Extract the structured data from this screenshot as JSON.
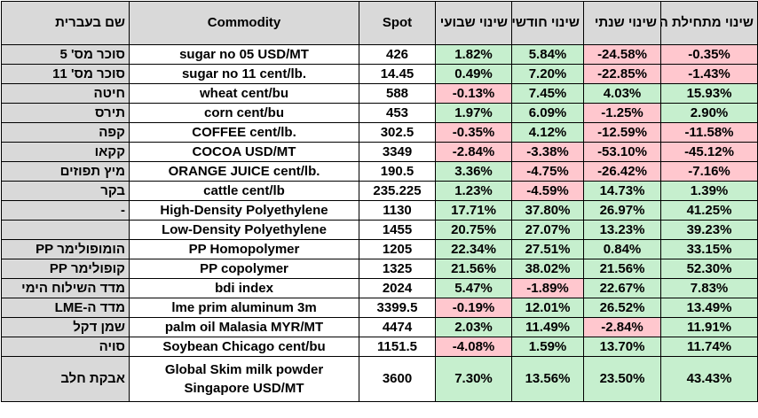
{
  "headers": {
    "hebrew_name": "שם בעברית",
    "commodity": "Commodity",
    "spot": "Spot",
    "weekly_change": "שינוי שבועי",
    "monthly_change": "שינוי חודשי",
    "yearly_change": "שינוי שנתי",
    "ytd_change": "שינוי מתחילת השנה"
  },
  "colors": {
    "positive_fill": "#c6efce",
    "negative_fill": "#ffc7ce",
    "negative_text": "#9c0006",
    "hebrew_column_fill": "#d9d9d9"
  },
  "rows": [
    {
      "hebrew": "סוכר מס' 5",
      "commodity": "sugar no 05 USD/MT",
      "spot": "426",
      "weekly": "1.82%",
      "monthly": "5.84%",
      "yearly": "-24.58%",
      "ytd": "-0.35%"
    },
    {
      "hebrew": "סוכר מס' 11",
      "commodity": "sugar no 11 cent/lb.",
      "spot": "14.45",
      "weekly": "0.49%",
      "monthly": "7.20%",
      "yearly": "-22.85%",
      "ytd": "-1.43%"
    },
    {
      "hebrew": "חיטה",
      "commodity": "wheat cent/bu",
      "spot": "588",
      "weekly": "-0.13%",
      "monthly": "7.45%",
      "yearly": "4.03%",
      "ytd": "15.93%"
    },
    {
      "hebrew": "תירס",
      "commodity": "corn cent/bu",
      "spot": "453",
      "weekly": "1.97%",
      "monthly": "6.09%",
      "yearly": "-1.25%",
      "ytd": "2.90%"
    },
    {
      "hebrew": "קפה",
      "commodity": "COFFEE cent/lb.",
      "spot": "302.5",
      "weekly": "-0.35%",
      "monthly": "4.12%",
      "yearly": "-12.59%",
      "ytd": "-11.58%"
    },
    {
      "hebrew": "קקאו",
      "commodity": "COCOA USD/MT",
      "spot": "3349",
      "weekly": "-2.84%",
      "monthly": "-3.38%",
      "yearly": "-53.10%",
      "ytd": "-45.12%"
    },
    {
      "hebrew": "מיץ תפוזים",
      "commodity": "ORANGE JUICE cent/lb.",
      "spot": "190.5",
      "weekly": "3.36%",
      "monthly": "-4.75%",
      "yearly": "-26.42%",
      "ytd": "-7.16%"
    },
    {
      "hebrew": "בקר",
      "commodity": "cattle cent/lb",
      "spot": "235.225",
      "weekly": "1.23%",
      "monthly": "-4.59%",
      "yearly": "14.73%",
      "ytd": "1.39%"
    },
    {
      "hebrew": "-",
      "commodity": "High-Density Polyethylene",
      "spot": "1130",
      "weekly": "17.71%",
      "monthly": "37.80%",
      "yearly": "26.97%",
      "ytd": "41.25%"
    },
    {
      "hebrew": "",
      "commodity": "Low-Density Polyethylene",
      "spot": "1455",
      "weekly": "20.75%",
      "monthly": "27.07%",
      "yearly": "13.23%",
      "ytd": "39.23%"
    },
    {
      "hebrew": "הומופולימר PP",
      "commodity": "PP Homopolymer",
      "spot": "1205",
      "weekly": "22.34%",
      "monthly": "27.51%",
      "yearly": "0.84%",
      "ytd": "33.15%"
    },
    {
      "hebrew": "קופולימר PP",
      "commodity": "PP copolymer",
      "spot": "1325",
      "weekly": "21.56%",
      "monthly": "38.02%",
      "yearly": "21.56%",
      "ytd": "52.30%"
    },
    {
      "hebrew": "מדד השילוח הימי",
      "commodity": "bdi index",
      "spot": "2024",
      "weekly": "5.47%",
      "monthly": "-1.89%",
      "yearly": "22.67%",
      "ytd": "7.83%"
    },
    {
      "hebrew": "מדד ה-LME",
      "commodity": "lme prim aluminum 3m",
      "spot": "3399.5",
      "weekly": "-0.19%",
      "monthly": "12.01%",
      "yearly": "26.52%",
      "ytd": "13.49%"
    },
    {
      "hebrew": "שמן דקל",
      "commodity": "palm oil Malasia MYR/MT",
      "spot": "4474",
      "weekly": "2.03%",
      "monthly": "11.49%",
      "yearly": "-2.84%",
      "ytd": "11.91%"
    },
    {
      "hebrew": "סויה",
      "commodity": "Soybean Chicago cent/bu",
      "spot": "1151.5",
      "weekly": "-4.08%",
      "monthly": "1.59%",
      "yearly": "13.70%",
      "ytd": "11.74%"
    },
    {
      "hebrew": "אבקת חלב",
      "commodity": "Global Skim milk powder Singapore USD/MT",
      "spot": "3600",
      "weekly": "7.30%",
      "monthly": "13.56%",
      "yearly": "23.50%",
      "ytd": "43.43%"
    }
  ]
}
